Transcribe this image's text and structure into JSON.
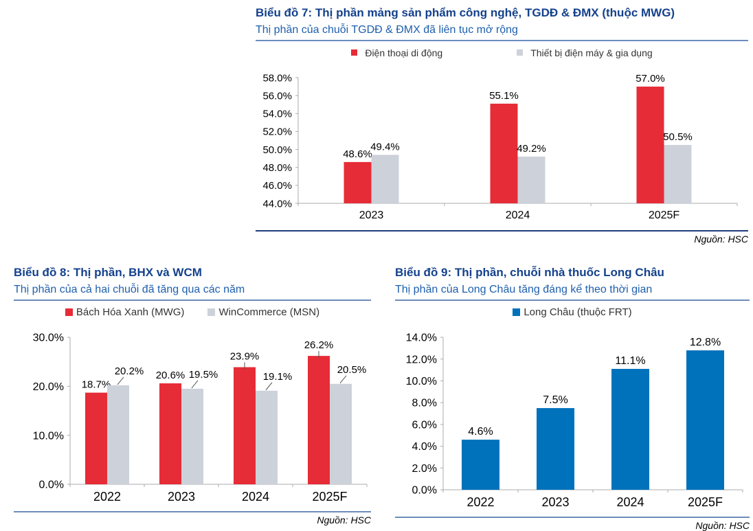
{
  "page": {
    "background": "#ffffff"
  },
  "colors": {
    "red": "#E62C37",
    "gray": "#CDD1D9",
    "blue": "#0072BC",
    "title_navy": "#14418C",
    "subtitle_blue": "#1E5FAD",
    "underline_steel": "#6C8CBB",
    "footer_rule_navy": "#1F3C7D",
    "axis_gray": "#ABABAB",
    "leader_gray": "#555555",
    "label_black": "#000000"
  },
  "charts": [
    {
      "title": "Biểu đồ 7: Thị phần mảng sản phẩm công nghệ, TGDĐ & ĐMX (thuộc MWG)",
      "subtitle": "Thị phần của chuỗi TGDĐ & ĐMX đã liên tục mở rộng",
      "source": "Nguồn: HSC",
      "chart_data": {
        "type": "bar",
        "categories": [
          "2023",
          "2024",
          "2025F"
        ],
        "series": [
          {
            "name": "Điện thoại di động",
            "color": "#E62C37",
            "values": [
              48.6,
              55.1,
              57.0
            ]
          },
          {
            "name": "Thiết bị điện máy & gia dụng",
            "color": "#CDD1D9",
            "values": [
              49.4,
              49.2,
              50.5
            ]
          }
        ],
        "ylim": [
          44,
          58
        ],
        "ytick_step": 2,
        "ytick_format": "percent-1dp",
        "value_labels": [
          "48.6%",
          "55.1%",
          "57.0%",
          "49.4%",
          "49.2%",
          "50.5%"
        ],
        "legend_position": "top",
        "grid": false
      }
    },
    {
      "title": "Biểu đồ 8: Thị phần, BHX và WCM",
      "subtitle": "Thị phần của cả hai chuỗi đã tăng qua các năm",
      "source": "Nguồn: HSC",
      "chart_data": {
        "type": "bar",
        "categories": [
          "2022",
          "2023",
          "2024",
          "2025F"
        ],
        "series": [
          {
            "name": "Bách Hóa Xanh (MWG)",
            "color": "#E62C37",
            "values": [
              18.7,
              20.6,
              23.9,
              26.2
            ]
          },
          {
            "name": "WinCommerce (MSN)",
            "color": "#CDD1D9",
            "values": [
              20.2,
              19.5,
              19.1,
              20.5
            ]
          }
        ],
        "ylim": [
          0,
          30
        ],
        "ytick_step": 10,
        "ytick_format": "percent-1dp",
        "value_labels": [
          "18.7%",
          "20.6%",
          "23.9%",
          "26.2%",
          "20.2%",
          "19.5%",
          "19.1%",
          "20.5%"
        ],
        "legend_position": "top",
        "grid": false
      }
    },
    {
      "title": "Biểu đồ 9: Thị phần, chuỗi nhà thuốc Long Châu",
      "subtitle": "Thị phần của Long Châu tăng đáng kể theo thời gian",
      "source": "Nguồn: HSC",
      "chart_data": {
        "type": "bar",
        "categories": [
          "2022",
          "2023",
          "2024",
          "2025F"
        ],
        "series": [
          {
            "name": "Long Châu (thuộc FRT)",
            "color": "#0072BC",
            "values": [
              4.6,
              7.5,
              11.1,
              12.8
            ]
          }
        ],
        "ylim": [
          0,
          14
        ],
        "ytick_step": 2,
        "ytick_format": "percent-1dp",
        "value_labels": [
          "4.6%",
          "7.5%",
          "11.1%",
          "12.8%"
        ],
        "legend_position": "top",
        "grid": false
      }
    }
  ]
}
